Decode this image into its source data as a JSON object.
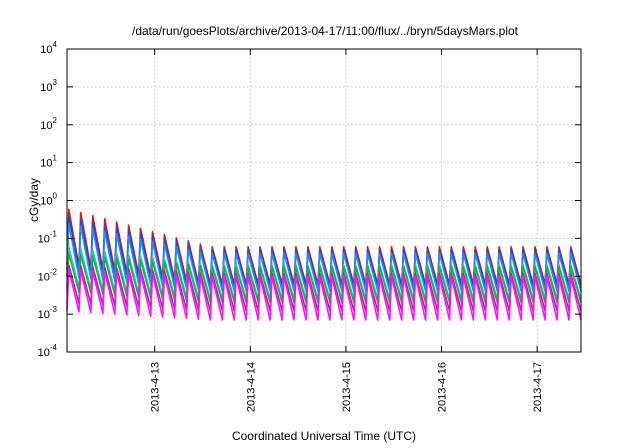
{
  "chart_data": {
    "type": "line",
    "title": "/data/run/goesPlots/archive/2013-04-17/11:00/flux/../bryn/5daysMars.plot",
    "xlabel": "Coordinated Universal Time (UTC)",
    "ylabel": "cGy/day",
    "yscale": "log",
    "ylim": [
      0.0001,
      10000
    ],
    "xlim_days": [
      "2013-04-12 02:00",
      "2013-04-17 11:00"
    ],
    "y_ticks": [
      {
        "value": 0.0001,
        "base": "10",
        "exp": "-4"
      },
      {
        "value": 0.001,
        "base": "10",
        "exp": "-3"
      },
      {
        "value": 0.01,
        "base": "10",
        "exp": "-2"
      },
      {
        "value": 0.1,
        "base": "10",
        "exp": "-1"
      },
      {
        "value": 1,
        "base": "10",
        "exp": "0"
      },
      {
        "value": 10,
        "base": "10",
        "exp": "1"
      },
      {
        "value": 100,
        "base": "10",
        "exp": "2"
      },
      {
        "value": 1000,
        "base": "10",
        "exp": "3"
      },
      {
        "value": 10000,
        "base": "10",
        "exp": "4"
      }
    ],
    "x_ticks": [
      "2013-4-13",
      "2013-4-14",
      "2013-4-15",
      "2013-4-16",
      "2013-4-17"
    ],
    "grid": true,
    "oscillation_period_hours": 3,
    "series": [
      {
        "color": "#e81010",
        "peak_start": 0.6,
        "peak_end": 0.06,
        "trough_start": 0.02,
        "trough_end": 0.006
      },
      {
        "color": "#1050e0",
        "peak_start": 0.4,
        "peak_end": 0.05,
        "trough_start": 0.015,
        "trough_end": 0.005
      },
      {
        "color": "#2090f0",
        "peak_start": 0.25,
        "peak_end": 0.04,
        "trough_start": 0.01,
        "trough_end": 0.004
      },
      {
        "color": "#20c8c8",
        "peak_start": 0.06,
        "peak_end": 0.02,
        "trough_start": 0.005,
        "trough_end": 0.0025
      },
      {
        "color": "#20b040",
        "peak_start": 0.04,
        "peak_end": 0.018,
        "trough_start": 0.004,
        "trough_end": 0.002
      },
      {
        "color": "#a03090",
        "peak_start": 0.02,
        "peak_end": 0.012,
        "trough_start": 0.002,
        "trough_end": 0.0012
      },
      {
        "color": "#ff10ff",
        "peak_start": 0.015,
        "peak_end": 0.01,
        "trough_start": 0.0012,
        "trough_end": 0.0007
      }
    ]
  }
}
